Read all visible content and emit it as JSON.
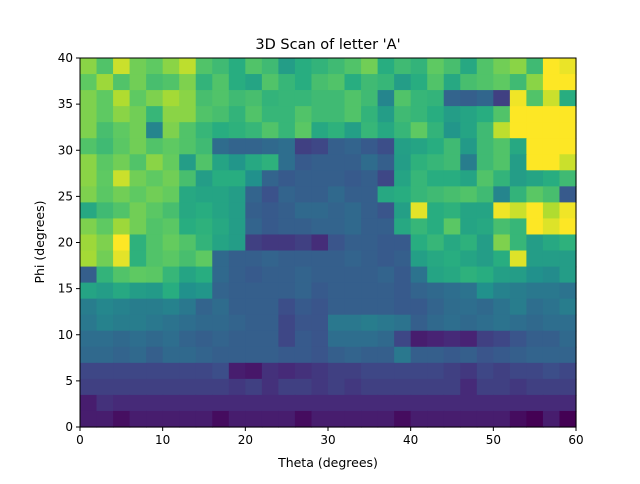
{
  "chart_data": {
    "type": "heatmap",
    "title": "3D Scan of letter 'A'",
    "xlabel": "Theta (degrees)",
    "ylabel": "Phi (degrees)",
    "xlim": [
      0,
      60
    ],
    "ylim": [
      0,
      40
    ],
    "xticks": [
      "0",
      "10",
      "20",
      "30",
      "40",
      "50",
      "60"
    ],
    "yticks": [
      "0",
      "5",
      "10",
      "15",
      "20",
      "25",
      "30",
      "35",
      "40"
    ],
    "grid": false,
    "colormap": "viridis",
    "value_range": [
      0,
      1
    ],
    "columns": 30,
    "row_order": "top-to-bottom (phi 40 down to 0)",
    "values": [
      [
        0.82,
        0.72,
        0.92,
        0.78,
        0.75,
        0.82,
        0.9,
        0.72,
        0.68,
        0.62,
        0.72,
        0.68,
        0.55,
        0.62,
        0.65,
        0.68,
        0.72,
        0.78,
        0.62,
        0.68,
        0.65,
        0.75,
        0.7,
        0.6,
        0.72,
        0.78,
        0.82,
        0.68,
        1.0,
        0.97
      ],
      [
        0.75,
        0.85,
        0.72,
        0.78,
        0.7,
        0.72,
        0.8,
        0.65,
        0.72,
        0.62,
        0.58,
        0.72,
        0.66,
        0.62,
        0.7,
        0.72,
        0.62,
        0.68,
        0.66,
        0.55,
        0.62,
        0.72,
        0.6,
        0.7,
        0.72,
        0.75,
        0.68,
        0.82,
        1.0,
        1.0
      ],
      [
        0.8,
        0.75,
        0.88,
        0.75,
        0.8,
        0.86,
        0.82,
        0.7,
        0.72,
        0.68,
        0.7,
        0.65,
        0.66,
        0.66,
        0.68,
        0.68,
        0.72,
        0.68,
        0.45,
        0.72,
        0.66,
        0.65,
        0.32,
        0.3,
        0.33,
        0.2,
        0.98,
        0.72,
        0.92,
        0.62
      ],
      [
        0.8,
        0.75,
        0.82,
        0.78,
        0.66,
        0.82,
        0.82,
        0.72,
        0.7,
        0.65,
        0.72,
        0.66,
        0.66,
        0.72,
        0.68,
        0.68,
        0.72,
        0.65,
        0.55,
        0.68,
        0.66,
        0.62,
        0.55,
        0.58,
        0.62,
        0.72,
        1.0,
        1.0,
        1.0,
        1.0
      ],
      [
        0.8,
        0.7,
        0.75,
        0.78,
        0.45,
        0.8,
        0.72,
        0.66,
        0.62,
        0.64,
        0.66,
        0.72,
        0.66,
        0.74,
        0.6,
        0.64,
        0.56,
        0.66,
        0.6,
        0.66,
        0.75,
        0.65,
        0.52,
        0.58,
        0.68,
        0.9,
        1.0,
        1.0,
        1.0,
        1.0
      ],
      [
        0.72,
        0.68,
        0.74,
        0.78,
        0.72,
        0.75,
        0.72,
        0.68,
        0.35,
        0.32,
        0.32,
        0.34,
        0.36,
        0.2,
        0.22,
        0.3,
        0.32,
        0.28,
        0.24,
        0.56,
        0.58,
        0.62,
        0.68,
        0.54,
        0.68,
        0.72,
        0.6,
        1.0,
        1.0,
        1.0
      ],
      [
        0.82,
        0.74,
        0.78,
        0.72,
        0.82,
        0.76,
        0.55,
        0.72,
        0.58,
        0.52,
        0.6,
        0.64,
        0.36,
        0.28,
        0.3,
        0.3,
        0.3,
        0.35,
        0.3,
        0.55,
        0.64,
        0.66,
        0.68,
        0.42,
        0.68,
        0.72,
        0.55,
        1.0,
        1.0,
        0.92
      ],
      [
        0.82,
        0.75,
        0.92,
        0.78,
        0.75,
        0.78,
        0.7,
        0.55,
        0.62,
        0.62,
        0.5,
        0.32,
        0.28,
        0.3,
        0.3,
        0.3,
        0.28,
        0.3,
        0.22,
        0.58,
        0.66,
        0.62,
        0.62,
        0.58,
        0.72,
        0.65,
        0.55,
        0.58,
        0.62,
        0.68
      ],
      [
        0.8,
        0.74,
        0.78,
        0.75,
        0.78,
        0.76,
        0.6,
        0.58,
        0.58,
        0.55,
        0.32,
        0.25,
        0.32,
        0.3,
        0.3,
        0.34,
        0.3,
        0.3,
        0.6,
        0.62,
        0.66,
        0.68,
        0.7,
        0.72,
        0.68,
        0.45,
        0.65,
        0.74,
        0.7,
        0.28
      ],
      [
        0.6,
        0.68,
        0.72,
        0.78,
        0.74,
        0.7,
        0.6,
        0.62,
        0.58,
        0.55,
        0.3,
        0.28,
        0.3,
        0.34,
        0.34,
        0.32,
        0.34,
        0.3,
        0.26,
        0.56,
        0.96,
        0.62,
        0.64,
        0.58,
        0.58,
        0.98,
        0.92,
        1.0,
        0.88,
        0.98
      ],
      [
        0.8,
        0.75,
        0.85,
        0.78,
        0.72,
        0.74,
        0.62,
        0.64,
        0.6,
        0.55,
        0.32,
        0.28,
        0.3,
        0.3,
        0.32,
        0.32,
        0.34,
        0.3,
        0.3,
        0.6,
        0.66,
        0.62,
        0.74,
        0.58,
        0.6,
        0.7,
        0.66,
        1.0,
        0.95,
        1.0
      ],
      [
        0.85,
        0.8,
        1.0,
        0.64,
        0.72,
        0.76,
        0.72,
        0.65,
        0.58,
        0.55,
        0.2,
        0.18,
        0.18,
        0.2,
        0.15,
        0.26,
        0.3,
        0.3,
        0.28,
        0.28,
        0.62,
        0.66,
        0.6,
        0.64,
        0.55,
        0.8,
        0.66,
        0.55,
        0.6,
        0.64
      ],
      [
        0.86,
        0.78,
        0.96,
        0.64,
        0.72,
        0.74,
        0.7,
        0.75,
        0.34,
        0.3,
        0.3,
        0.32,
        0.3,
        0.3,
        0.3,
        0.3,
        0.32,
        0.3,
        0.28,
        0.3,
        0.56,
        0.6,
        0.62,
        0.58,
        0.55,
        0.62,
        0.95,
        0.55,
        0.55,
        0.55
      ],
      [
        0.3,
        0.65,
        0.72,
        0.75,
        0.74,
        0.66,
        0.58,
        0.62,
        0.34,
        0.3,
        0.28,
        0.3,
        0.3,
        0.32,
        0.3,
        0.3,
        0.3,
        0.3,
        0.32,
        0.28,
        0.38,
        0.58,
        0.6,
        0.64,
        0.62,
        0.56,
        0.55,
        0.5,
        0.48,
        0.55
      ],
      [
        0.58,
        0.55,
        0.6,
        0.55,
        0.54,
        0.62,
        0.5,
        0.52,
        0.32,
        0.3,
        0.3,
        0.3,
        0.3,
        0.32,
        0.28,
        0.3,
        0.3,
        0.3,
        0.3,
        0.28,
        0.32,
        0.34,
        0.36,
        0.38,
        0.5,
        0.44,
        0.42,
        0.4,
        0.4,
        0.38
      ],
      [
        0.42,
        0.46,
        0.44,
        0.42,
        0.42,
        0.44,
        0.4,
        0.32,
        0.35,
        0.3,
        0.3,
        0.3,
        0.24,
        0.28,
        0.26,
        0.3,
        0.3,
        0.3,
        0.3,
        0.28,
        0.28,
        0.32,
        0.35,
        0.36,
        0.34,
        0.38,
        0.42,
        0.36,
        0.38,
        0.42
      ],
      [
        0.4,
        0.44,
        0.42,
        0.42,
        0.4,
        0.38,
        0.36,
        0.34,
        0.34,
        0.32,
        0.3,
        0.3,
        0.22,
        0.26,
        0.26,
        0.4,
        0.4,
        0.42,
        0.4,
        0.38,
        0.3,
        0.34,
        0.36,
        0.34,
        0.36,
        0.38,
        0.36,
        0.34,
        0.36,
        0.36
      ],
      [
        0.36,
        0.36,
        0.34,
        0.36,
        0.34,
        0.36,
        0.32,
        0.3,
        0.32,
        0.3,
        0.3,
        0.3,
        0.22,
        0.28,
        0.26,
        0.36,
        0.36,
        0.36,
        0.34,
        0.22,
        0.1,
        0.12,
        0.14,
        0.12,
        0.2,
        0.22,
        0.26,
        0.3,
        0.3,
        0.34
      ],
      [
        0.34,
        0.34,
        0.32,
        0.34,
        0.3,
        0.34,
        0.34,
        0.32,
        0.3,
        0.3,
        0.3,
        0.3,
        0.28,
        0.28,
        0.26,
        0.3,
        0.32,
        0.3,
        0.3,
        0.4,
        0.3,
        0.3,
        0.28,
        0.3,
        0.26,
        0.28,
        0.3,
        0.32,
        0.32,
        0.32
      ],
      [
        0.22,
        0.22,
        0.22,
        0.22,
        0.22,
        0.22,
        0.22,
        0.22,
        0.24,
        0.1,
        0.08,
        0.16,
        0.14,
        0.16,
        0.18,
        0.2,
        0.2,
        0.22,
        0.22,
        0.22,
        0.22,
        0.22,
        0.2,
        0.18,
        0.22,
        0.2,
        0.22,
        0.22,
        0.24,
        0.22
      ],
      [
        0.2,
        0.2,
        0.2,
        0.2,
        0.2,
        0.2,
        0.2,
        0.2,
        0.2,
        0.18,
        0.2,
        0.16,
        0.2,
        0.2,
        0.18,
        0.2,
        0.18,
        0.2,
        0.2,
        0.2,
        0.2,
        0.2,
        0.2,
        0.14,
        0.2,
        0.2,
        0.18,
        0.2,
        0.2,
        0.2
      ],
      [
        0.1,
        0.16,
        0.14,
        0.14,
        0.14,
        0.14,
        0.14,
        0.14,
        0.14,
        0.14,
        0.14,
        0.14,
        0.14,
        0.14,
        0.14,
        0.14,
        0.14,
        0.14,
        0.14,
        0.14,
        0.14,
        0.14,
        0.14,
        0.14,
        0.14,
        0.14,
        0.14,
        0.14,
        0.14,
        0.14
      ],
      [
        0.1,
        0.1,
        0.05,
        0.1,
        0.1,
        0.1,
        0.1,
        0.1,
        0.04,
        0.1,
        0.1,
        0.1,
        0.1,
        0.04,
        0.1,
        0.1,
        0.1,
        0.1,
        0.1,
        0.04,
        0.1,
        0.1,
        0.1,
        0.1,
        0.1,
        0.1,
        0.04,
        0.0,
        0.1,
        0.0
      ]
    ]
  }
}
